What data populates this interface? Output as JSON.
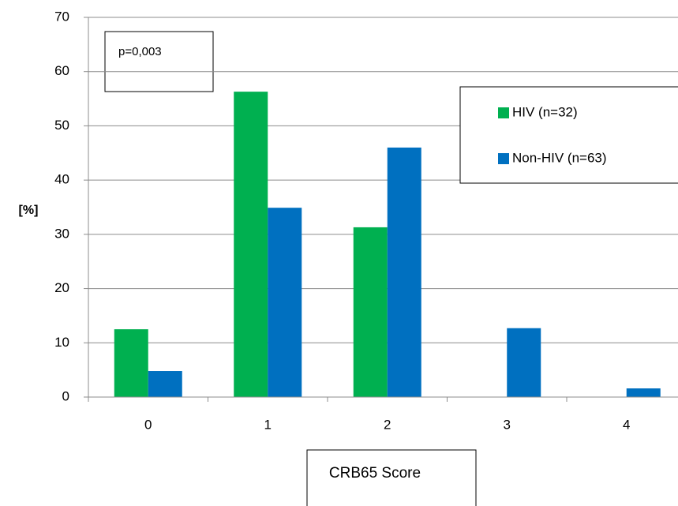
{
  "chart_data": {
    "type": "bar",
    "annotation": "p=0,003",
    "x_label": "CRB65 Score",
    "y_label": "[%]",
    "categories": [
      "0",
      "1",
      "2",
      "3",
      "4"
    ],
    "series": [
      {
        "name": "HIV (n=32)",
        "color": "#00b050",
        "values": [
          12.5,
          56.3,
          31.3,
          0,
          0
        ]
      },
      {
        "name": "Non-HIV (n=63)",
        "color": "#0070c0",
        "values": [
          4.8,
          34.9,
          46.0,
          12.7,
          1.6
        ]
      }
    ],
    "ylim": [
      0,
      70
    ],
    "yticks": [
      0,
      10,
      20,
      30,
      40,
      50,
      60,
      70
    ],
    "grid": true,
    "legend": "upper right"
  }
}
